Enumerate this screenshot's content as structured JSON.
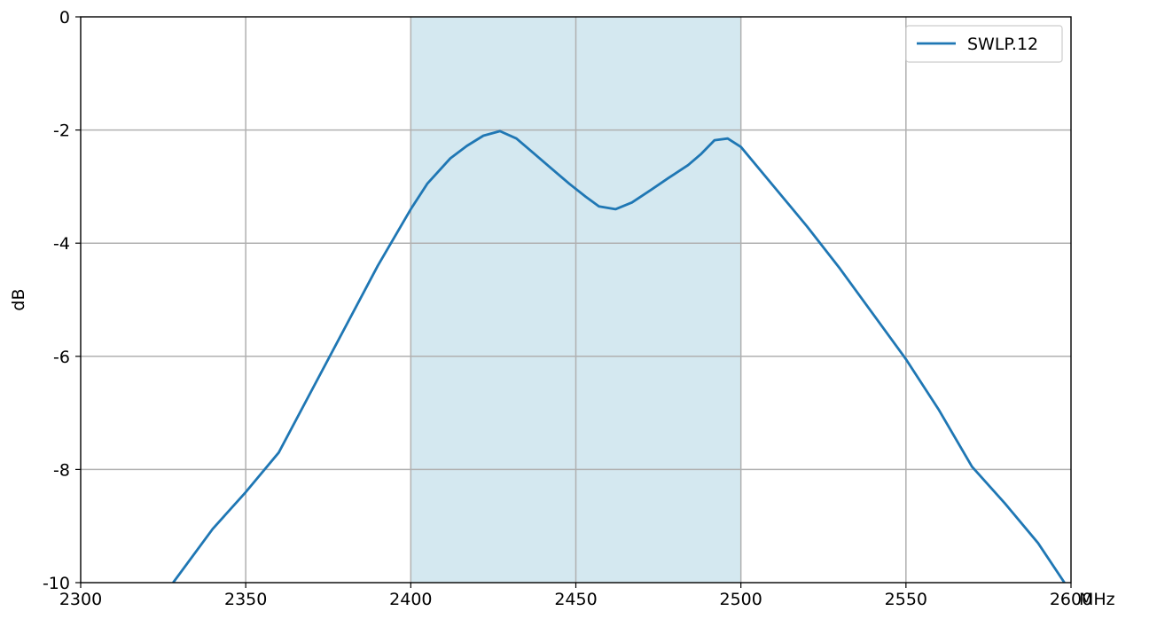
{
  "chart_data": {
    "type": "line",
    "title": "",
    "xlabel": "MHz",
    "ylabel": "dB",
    "xlim": [
      2300,
      2600
    ],
    "ylim": [
      -10,
      0
    ],
    "x_ticks": [
      "2300",
      "2350",
      "2400",
      "2450",
      "2500",
      "2550",
      "2600"
    ],
    "y_ticks": [
      "0",
      "-2",
      "-4",
      "-6",
      "-8",
      "-10"
    ],
    "grid": true,
    "legend_position": "top-right",
    "highlight_band": {
      "x_start": 2400,
      "x_end": 2500,
      "color": "#d4e8f0"
    },
    "series": [
      {
        "name": "SWLP.12",
        "color": "#1f77b4",
        "points": [
          [
            2328,
            -10.0
          ],
          [
            2340,
            -9.05
          ],
          [
            2350,
            -8.4
          ],
          [
            2360,
            -7.7
          ],
          [
            2370,
            -6.6
          ],
          [
            2380,
            -5.5
          ],
          [
            2390,
            -4.4
          ],
          [
            2400,
            -3.4
          ],
          [
            2405,
            -2.95
          ],
          [
            2412,
            -2.5
          ],
          [
            2417,
            -2.28
          ],
          [
            2422,
            -2.1
          ],
          [
            2427,
            -2.02
          ],
          [
            2432,
            -2.15
          ],
          [
            2437,
            -2.4
          ],
          [
            2442,
            -2.65
          ],
          [
            2448,
            -2.95
          ],
          [
            2453,
            -3.18
          ],
          [
            2457,
            -3.35
          ],
          [
            2462,
            -3.4
          ],
          [
            2467,
            -3.28
          ],
          [
            2473,
            -3.05
          ],
          [
            2478,
            -2.85
          ],
          [
            2484,
            -2.62
          ],
          [
            2488,
            -2.42
          ],
          [
            2492,
            -2.18
          ],
          [
            2496,
            -2.15
          ],
          [
            2500,
            -2.3
          ],
          [
            2510,
            -3.0
          ],
          [
            2520,
            -3.7
          ],
          [
            2530,
            -4.45
          ],
          [
            2540,
            -5.25
          ],
          [
            2550,
            -6.05
          ],
          [
            2560,
            -6.95
          ],
          [
            2570,
            -7.95
          ],
          [
            2580,
            -8.6
          ],
          [
            2590,
            -9.3
          ],
          [
            2598,
            -10.0
          ]
        ]
      }
    ]
  }
}
